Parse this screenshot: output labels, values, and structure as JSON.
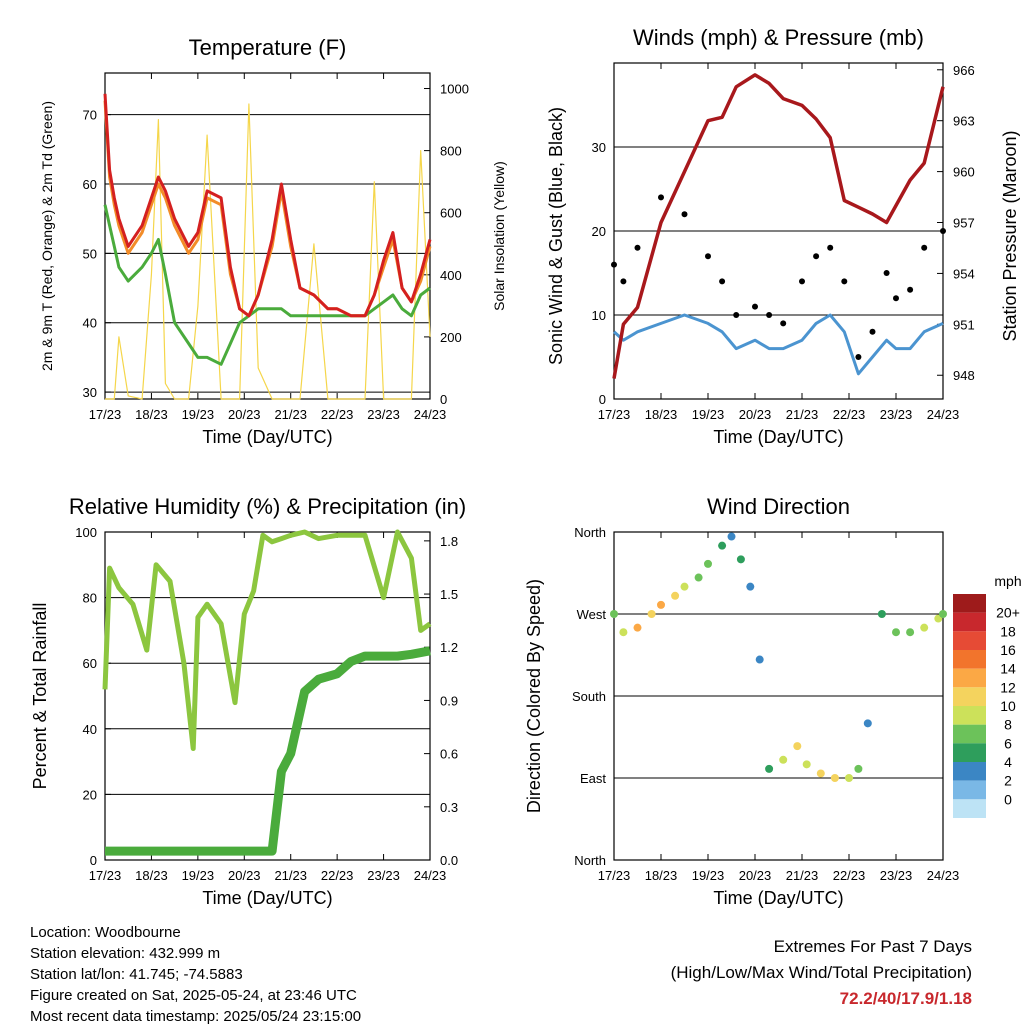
{
  "ticks_time": [
    "17/23",
    "18/23",
    "19/23",
    "20/23",
    "21/23",
    "22/23",
    "23/23",
    "24/23"
  ],
  "colors": {
    "red": "#d42020",
    "orange": "#f28c28",
    "green": "#4aab3c",
    "yellow": "#f5d64a",
    "maroon": "#a8181c",
    "blue": "#4b94d0",
    "black": "#000000",
    "lightgreen": "#8cc63f"
  },
  "chart_data": [
    {
      "type": "line",
      "title": "Temperature (F)",
      "xlabel": "Time (Day/UTC)",
      "ylabel": "2m & 9m T (Red, Orange) & 2m Td (Green)",
      "y2label": "Solar Insolation (Yellow)",
      "ylim": [
        29,
        76
      ],
      "yticks": [
        30,
        40,
        50,
        60,
        70
      ],
      "y2lim": [
        0,
        1050
      ],
      "y2ticks": [
        0,
        200,
        400,
        600,
        800,
        1000
      ],
      "x": [
        0,
        0.1,
        0.2,
        0.3,
        0.5,
        0.8,
        1.0,
        1.15,
        1.3,
        1.5,
        1.8,
        2.0,
        2.2,
        2.5,
        2.7,
        2.9,
        3.1,
        3.3,
        3.6,
        3.8,
        4.0,
        4.2,
        4.5,
        4.8,
        5.0,
        5.3,
        5.6,
        5.8,
        6.0,
        6.2,
        6.4,
        6.6,
        6.8,
        7.0
      ],
      "series": [
        {
          "name": "2m T",
          "values": [
            73,
            62,
            58,
            55,
            51,
            54,
            58,
            61,
            59,
            55,
            51,
            53,
            59,
            58,
            48,
            42,
            41,
            44,
            52,
            60,
            52,
            45,
            44,
            42,
            42,
            41,
            41,
            44,
            49,
            53,
            45,
            43,
            47,
            52
          ]
        },
        {
          "name": "9m T",
          "values": [
            72,
            61,
            57,
            54,
            50,
            53,
            57,
            60,
            58,
            54,
            50,
            52,
            58,
            57,
            47,
            42,
            41,
            44,
            51,
            59,
            51,
            45,
            44,
            42,
            42,
            41,
            41,
            44,
            48,
            52,
            45,
            43,
            46,
            51
          ]
        },
        {
          "name": "2m Td",
          "values": [
            57,
            54,
            51,
            48,
            46,
            48,
            50,
            52,
            47,
            40,
            37,
            35,
            35,
            34,
            37,
            40,
            41,
            42,
            42,
            42,
            41,
            41,
            41,
            41,
            41,
            41,
            41,
            42,
            43,
            44,
            42,
            41,
            44,
            45
          ]
        },
        {
          "name": "Solar",
          "values": [
            0,
            0,
            0,
            200,
            10,
            0,
            400,
            900,
            50,
            0,
            0,
            300,
            850,
            0,
            0,
            0,
            950,
            100,
            0,
            0,
            0,
            0,
            500,
            0,
            0,
            0,
            0,
            700,
            0,
            0,
            0,
            0,
            800,
            200
          ]
        }
      ]
    },
    {
      "type": "line",
      "title": "Winds (mph) & Pressure (mb)",
      "xlabel": "Time (Day/UTC)",
      "ylabel": "Sonic Wind & Gust (Blue, Black)",
      "y2label": "Station Pressure (Maroon)",
      "ylim": [
        0,
        40
      ],
      "yticks": [
        0,
        10,
        20,
        30
      ],
      "y2lim": [
        946.6,
        966.4
      ],
      "y2ticks": [
        948,
        951,
        954,
        957,
        960,
        963,
        966
      ],
      "x": [
        0,
        0.2,
        0.5,
        1.0,
        1.5,
        2.0,
        2.3,
        2.6,
        3.0,
        3.3,
        3.6,
        4.0,
        4.3,
        4.6,
        4.9,
        5.2,
        5.5,
        5.8,
        6.0,
        6.3,
        6.6,
        7.0
      ],
      "series": [
        {
          "name": "Sonic Wind",
          "values": [
            8,
            7,
            8,
            9,
            10,
            9,
            8,
            6,
            7,
            6,
            6,
            7,
            9,
            10,
            8,
            3,
            5,
            7,
            6,
            6,
            8,
            9
          ]
        },
        {
          "name": "Gust",
          "values": [
            16,
            14,
            18,
            24,
            22,
            17,
            14,
            10,
            11,
            10,
            9,
            14,
            17,
            18,
            14,
            5,
            8,
            15,
            12,
            13,
            18,
            20
          ]
        },
        {
          "name": "Pressure",
          "values": [
            947.8,
            951,
            952,
            957,
            960,
            963,
            963.2,
            965,
            965.7,
            965.2,
            964.3,
            963.9,
            963.1,
            962,
            958.3,
            957.9,
            957.5,
            957,
            958,
            959.5,
            960.5,
            965
          ]
        }
      ]
    },
    {
      "type": "line",
      "title": "Relative Humidity (%) & Precipitation (in)",
      "xlabel": "Time (Day/UTC)",
      "ylabel": "Percent & Total Rainfall",
      "ylim": [
        0,
        100
      ],
      "yticks": [
        0,
        20,
        40,
        60,
        80,
        100
      ],
      "y2lim": [
        0,
        1.85
      ],
      "y2ticks": [
        "0.0",
        "0.3",
        "0.6",
        "0.9",
        "1.2",
        "1.5",
        "1.8"
      ],
      "x": [
        0,
        0.1,
        0.3,
        0.6,
        0.9,
        1.1,
        1.4,
        1.7,
        1.9,
        2.0,
        2.2,
        2.5,
        2.8,
        3.0,
        3.2,
        3.4,
        3.6,
        3.8,
        4.0,
        4.3,
        4.6,
        5.0,
        5.3,
        5.6,
        6.0,
        6.3,
        6.6,
        6.8,
        7.0
      ],
      "series": [
        {
          "name": "RH",
          "values": [
            52,
            89,
            83,
            78,
            64,
            90,
            85,
            60,
            34,
            74,
            78,
            72,
            48,
            75,
            82,
            99,
            97,
            98,
            99,
            100,
            98,
            99,
            99,
            99,
            80,
            100,
            92,
            70,
            72
          ]
        },
        {
          "name": "Precip",
          "values": [
            0.05,
            0.05,
            0.05,
            0.05,
            0.05,
            0.05,
            0.05,
            0.05,
            0.05,
            0.05,
            0.05,
            0.05,
            0.05,
            0.05,
            0.05,
            0.05,
            0.05,
            0.5,
            0.6,
            0.95,
            1.02,
            1.05,
            1.12,
            1.15,
            1.15,
            1.15,
            1.16,
            1.17,
            1.18
          ]
        }
      ]
    },
    {
      "type": "scatter",
      "title": "Wind Direction",
      "xlabel": "Time (Day/UTC)",
      "ylabel": "Direction (Colored By Speed)",
      "ylim": [
        0,
        360
      ],
      "yticks": [
        "North",
        "East",
        "South",
        "West",
        "North"
      ],
      "legend_title": "mph",
      "legend_labels": [
        "20+",
        "18",
        "16",
        "14",
        "12",
        "10",
        "8",
        "6",
        "4",
        "2",
        "0"
      ],
      "legend_colors": [
        "#9e1b1b",
        "#c8282d",
        "#e64b35",
        "#f2742c",
        "#fba845",
        "#f4d35e",
        "#cce15a",
        "#6cc25a",
        "#2e9e5c",
        "#3b86c4",
        "#7ab8e6",
        "#bde3f5"
      ],
      "x": [
        0,
        0.2,
        0.5,
        0.8,
        1.0,
        1.3,
        1.5,
        1.8,
        2.0,
        2.3,
        2.5,
        2.7,
        2.9,
        3.1,
        3.3,
        3.6,
        3.9,
        4.1,
        4.4,
        4.7,
        5.0,
        5.2,
        5.4,
        5.7,
        6.0,
        6.3,
        6.6,
        6.9,
        7.0
      ],
      "dir": [
        270,
        250,
        255,
        270,
        280,
        290,
        300,
        310,
        325,
        345,
        355,
        330,
        300,
        220,
        100,
        110,
        125,
        105,
        95,
        90,
        90,
        100,
        150,
        270,
        250,
        250,
        255,
        265,
        270
      ],
      "speed": [
        7,
        10,
        14,
        12,
        13,
        11,
        9,
        8,
        7,
        5,
        4,
        5,
        4,
        3,
        6,
        9,
        11,
        10,
        12,
        12,
        10,
        8,
        3,
        5,
        7,
        8,
        10,
        9,
        8
      ]
    }
  ],
  "footer": [
    "Location: Woodbourne",
    "Station elevation: 432.999 m",
    "Station lat/lon: 41.745; -74.5883",
    "Figure created on Sat, 2025-05-24, at 23:46 UTC",
    "Most recent data timestamp: 2025/05/24 23:15:00"
  ],
  "extremes": {
    "line1": "Extremes For Past 7 Days",
    "line2": "(High/Low/Max Wind/Total Precipitation)",
    "values": "72.2/40/17.9/1.18"
  }
}
